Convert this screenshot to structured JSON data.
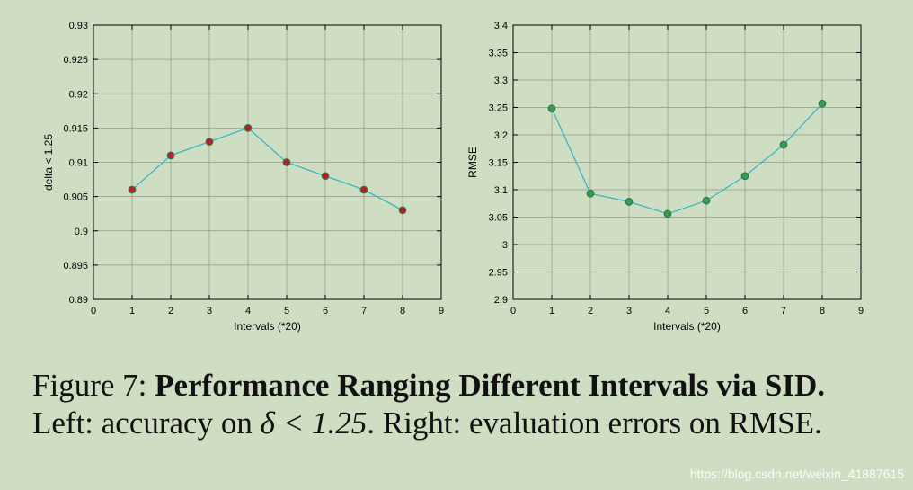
{
  "chart_data": [
    {
      "type": "line",
      "xlabel": "Intervals (*20)",
      "ylabel": "delta < 1.25",
      "xlim": [
        0,
        9
      ],
      "ylim": [
        0.89,
        0.93
      ],
      "xticks": [
        "0",
        "1",
        "2",
        "3",
        "4",
        "5",
        "6",
        "7",
        "8",
        "9"
      ],
      "yticks": [
        "0.89",
        "0.895",
        "0.9",
        "0.905",
        "0.91",
        "0.915",
        "0.92",
        "0.925",
        "0.93"
      ],
      "grid": true,
      "line_color": "#3ab7c4",
      "marker_color": "#c4162e",
      "marker_edge": "#2e7d3a",
      "series": [
        {
          "x": [
            1,
            2,
            3,
            4,
            5,
            6,
            7,
            8
          ],
          "values": [
            0.906,
            0.911,
            0.913,
            0.915,
            0.91,
            0.908,
            0.906,
            0.903
          ]
        }
      ]
    },
    {
      "type": "line",
      "xlabel": "Intervals (*20)",
      "ylabel": "RMSE",
      "xlim": [
        0,
        9
      ],
      "ylim": [
        2.9,
        3.4
      ],
      "xticks": [
        "0",
        "1",
        "2",
        "3",
        "4",
        "5",
        "6",
        "7",
        "8",
        "9"
      ],
      "yticks": [
        "2.9",
        "2.95",
        "3",
        "3.05",
        "3.1",
        "3.15",
        "3.2",
        "3.25",
        "3.3",
        "3.35",
        "3.4"
      ],
      "grid": true,
      "line_color": "#3ab7c4",
      "marker_color": "#3a9a5c",
      "marker_edge": "#2e7d3a",
      "series": [
        {
          "x": [
            1,
            2,
            3,
            4,
            5,
            6,
            7,
            8
          ],
          "values": [
            3.248,
            3.093,
            3.078,
            3.056,
            3.08,
            3.125,
            3.182,
            3.257
          ]
        }
      ]
    }
  ],
  "caption": {
    "prefix": "Figure 7:",
    "title": "Performance Ranging Different Intervals via SID.",
    "line2_before": "Left: accuracy on ",
    "line2_math": "δ < 1.25",
    "line2_after": ". Right: evaluation errors on RMSE."
  },
  "watermark": "https://blog.csdn.net/weixin_41887615"
}
